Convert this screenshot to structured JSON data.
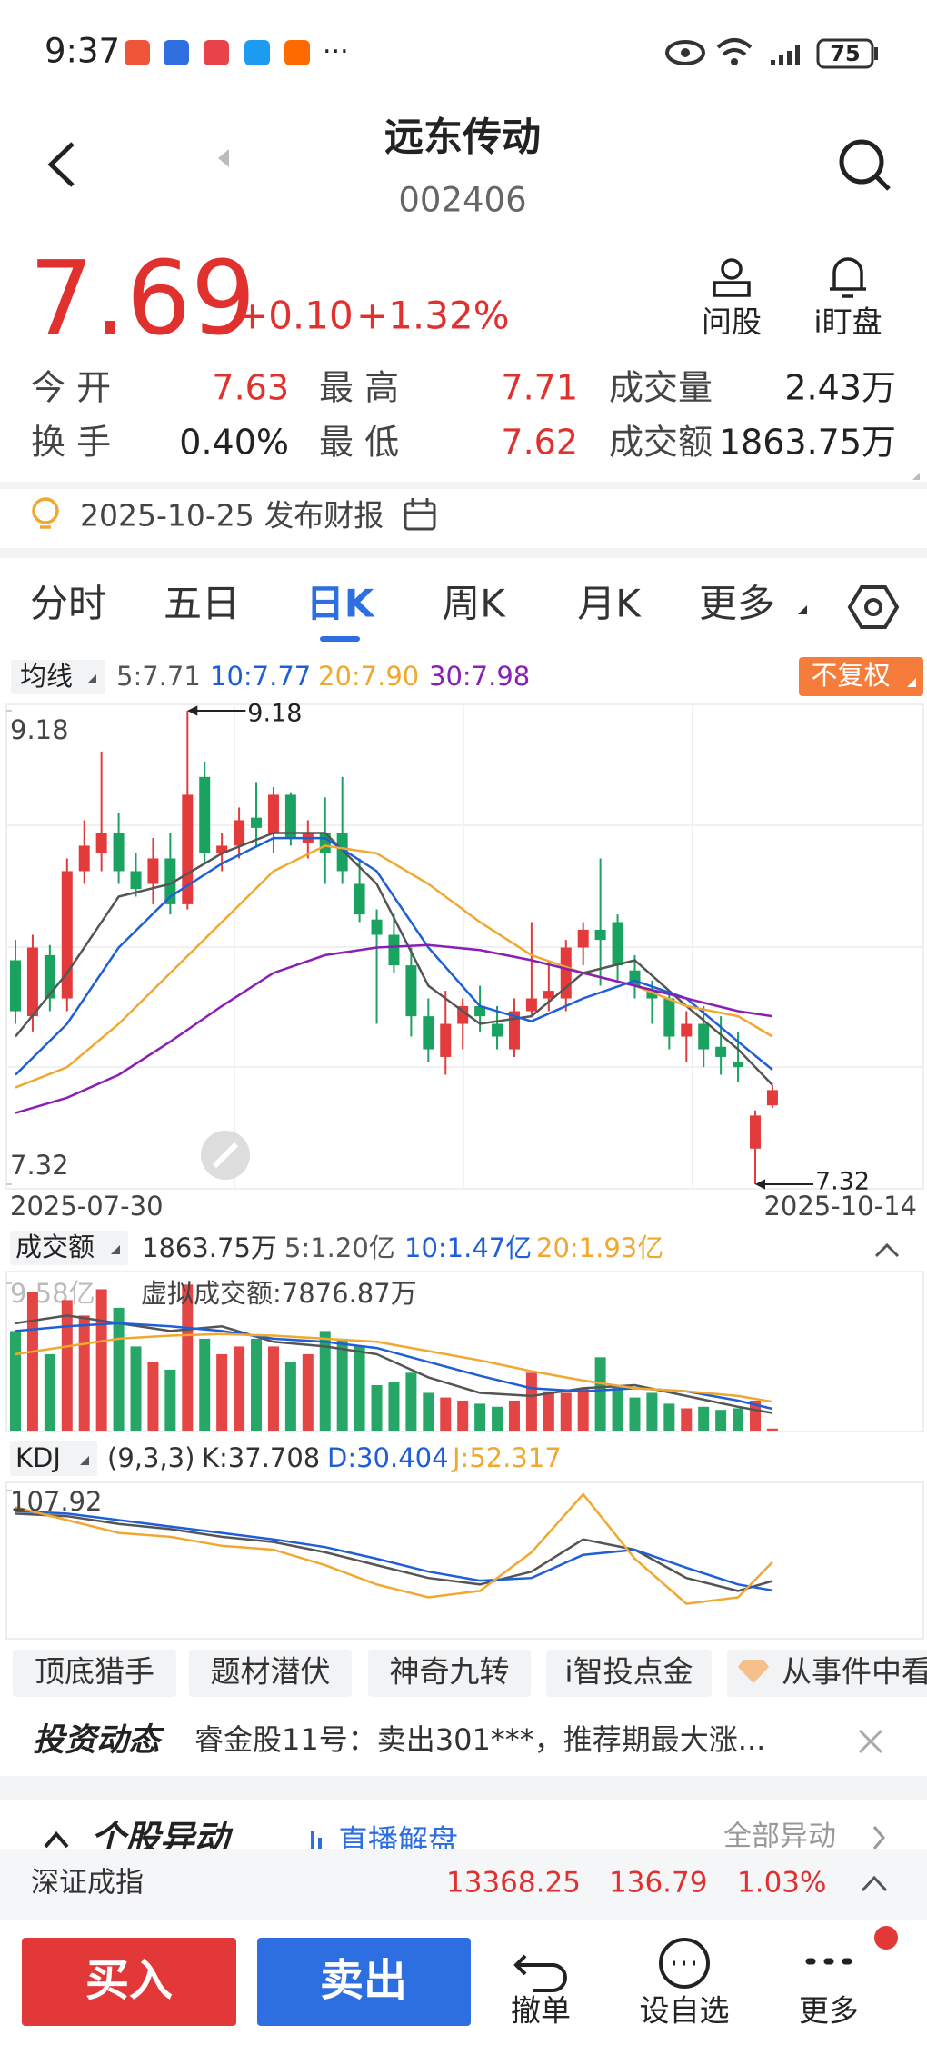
{
  "status_bar": {
    "time": "9:37",
    "battery": "75"
  },
  "header": {
    "name": "远东传动",
    "code": "002406"
  },
  "quote": {
    "price": "7.69",
    "change": "+0.10",
    "change_pct": "+1.32%",
    "actions": [
      "问股",
      "i盯盘"
    ],
    "stats": [
      {
        "label": "今 开",
        "value": "7.63",
        "color": "#e0312f"
      },
      {
        "label": "最 高",
        "value": "7.71",
        "color": "#e0312f"
      },
      {
        "label": "成交量",
        "value": "2.43万",
        "color": "#222"
      },
      {
        "label": "换 手",
        "value": "0.40%",
        "color": "#222"
      },
      {
        "label": "最 低",
        "value": "7.62",
        "color": "#e0312f"
      },
      {
        "label": "成交额",
        "value": "1863.75万",
        "color": "#222"
      }
    ]
  },
  "report": {
    "text": "2025-10-25 发布财报"
  },
  "tabs": {
    "items": [
      "分时",
      "五日",
      "日K",
      "周K",
      "月K",
      "更多"
    ],
    "active": 2
  },
  "kline": {
    "ma_label": "均线",
    "adjust": "不复权",
    "ylim": [
      7.32,
      9.18
    ],
    "yticks": [
      9.18,
      7.32
    ],
    "high_marker": 9.18,
    "low_marker": 7.32,
    "start_date": "2025-07-30",
    "end_date": "2025-10-14",
    "up_color": "#e33b3b",
    "down_color": "#1aa260",
    "candles": [
      [
        8.2,
        8.28,
        7.95,
        8.0
      ],
      [
        7.98,
        8.3,
        7.92,
        8.25
      ],
      [
        8.22,
        8.26,
        8.0,
        8.05
      ],
      [
        8.05,
        8.6,
        8.0,
        8.55
      ],
      [
        8.55,
        8.75,
        8.5,
        8.65
      ],
      [
        8.62,
        9.02,
        8.55,
        8.7
      ],
      [
        8.7,
        8.78,
        8.5,
        8.55
      ],
      [
        8.55,
        8.62,
        8.45,
        8.48
      ],
      [
        8.5,
        8.68,
        8.42,
        8.6
      ],
      [
        8.6,
        8.7,
        8.38,
        8.42
      ],
      [
        8.42,
        9.18,
        8.4,
        8.85
      ],
      [
        8.92,
        8.98,
        8.58,
        8.62
      ],
      [
        8.62,
        8.7,
        8.55,
        8.65
      ],
      [
        8.65,
        8.8,
        8.6,
        8.75
      ],
      [
        8.76,
        8.9,
        8.65,
        8.72
      ],
      [
        8.7,
        8.88,
        8.62,
        8.85
      ],
      [
        8.85,
        8.86,
        8.65,
        8.68
      ],
      [
        8.66,
        8.75,
        8.6,
        8.7
      ],
      [
        8.7,
        8.84,
        8.5,
        8.62
      ],
      [
        8.7,
        8.92,
        8.5,
        8.55
      ],
      [
        8.5,
        8.6,
        8.35,
        8.38
      ],
      [
        8.36,
        8.4,
        7.95,
        8.3
      ],
      [
        8.3,
        8.38,
        8.15,
        8.18
      ],
      [
        8.18,
        8.25,
        7.9,
        7.98
      ],
      [
        7.98,
        8.05,
        7.8,
        7.85
      ],
      [
        7.82,
        8.08,
        7.75,
        7.95
      ],
      [
        7.95,
        8.05,
        7.85,
        8.02
      ],
      [
        8.02,
        8.1,
        7.92,
        7.98
      ],
      [
        7.95,
        8.02,
        7.85,
        7.9
      ],
      [
        7.85,
        8.05,
        7.82,
        8.0
      ],
      [
        8.0,
        8.35,
        7.98,
        8.05
      ],
      [
        8.05,
        8.2,
        8.0,
        8.08
      ],
      [
        8.05,
        8.28,
        8.0,
        8.25
      ],
      [
        8.25,
        8.35,
        8.18,
        8.32
      ],
      [
        8.32,
        8.6,
        8.1,
        8.28
      ],
      [
        8.35,
        8.38,
        8.12,
        8.18
      ],
      [
        8.16,
        8.22,
        8.05,
        8.1
      ],
      [
        8.08,
        8.12,
        7.95,
        8.05
      ],
      [
        8.05,
        8.08,
        7.85,
        7.9
      ],
      [
        7.9,
        8.0,
        7.8,
        7.95
      ],
      [
        7.95,
        8.02,
        7.78,
        7.85
      ],
      [
        7.86,
        7.98,
        7.75,
        7.82
      ],
      [
        7.8,
        7.92,
        7.72,
        7.78
      ],
      [
        7.46,
        7.61,
        7.32,
        7.59
      ],
      [
        7.63,
        7.71,
        7.62,
        7.69
      ]
    ],
    "ma": {
      "x": [
        0,
        3,
        6,
        9,
        12,
        15,
        18,
        21,
        24,
        27,
        30,
        33,
        36,
        39,
        42,
        44
      ],
      "series": [
        {
          "name": "5:7.71",
          "color": "#555555",
          "values": [
            7.9,
            8.15,
            8.45,
            8.5,
            8.62,
            8.7,
            8.7,
            8.5,
            8.1,
            7.95,
            7.98,
            8.15,
            8.2,
            8.02,
            7.85,
            7.71
          ]
        },
        {
          "name": "10:7.77",
          "color": "#1f5fd6",
          "values": [
            7.75,
            7.95,
            8.25,
            8.45,
            8.58,
            8.68,
            8.68,
            8.55,
            8.25,
            8.02,
            7.96,
            8.05,
            8.12,
            8.05,
            7.88,
            7.77
          ]
        },
        {
          "name": "20:7.90",
          "color": "#f0a830",
          "values": [
            7.7,
            7.78,
            7.95,
            8.15,
            8.35,
            8.55,
            8.65,
            8.62,
            8.5,
            8.35,
            8.22,
            8.15,
            8.1,
            8.02,
            7.98,
            7.9
          ]
        },
        {
          "name": "30:7.98",
          "color": "#8a1fb5",
          "values": [
            7.6,
            7.66,
            7.75,
            7.88,
            8.02,
            8.15,
            8.22,
            8.25,
            8.26,
            8.24,
            8.2,
            8.15,
            8.1,
            8.05,
            8.0,
            7.98
          ]
        }
      ]
    }
  },
  "volume": {
    "label": "成交额",
    "current": "1863.75万",
    "virtual": "虚拟成交额:7876.87万",
    "ylim": [
      0,
      9.58
    ],
    "yticks": [
      {
        "value": 9.58,
        "label": "9.58亿"
      }
    ],
    "values": [
      6.5,
      9.0,
      5.0,
      8.5,
      7.5,
      9.2,
      8.0,
      5.5,
      4.5,
      4.0,
      9.5,
      6.0,
      5.0,
      5.5,
      6.0,
      5.5,
      4.5,
      5.0,
      6.5,
      6.0,
      5.5,
      3.0,
      3.2,
      3.8,
      2.5,
      2.2,
      2.0,
      1.8,
      1.6,
      2.0,
      3.8,
      2.6,
      2.5,
      2.8,
      4.8,
      3.0,
      2.2,
      2.5,
      1.8,
      1.5,
      1.6,
      1.4,
      1.5,
      2.0,
      0.19
    ],
    "ma": {
      "x": [
        0,
        3,
        6,
        9,
        12,
        15,
        18,
        21,
        24,
        27,
        30,
        33,
        36,
        39,
        42,
        44
      ],
      "series": [
        {
          "name": "5:1.20亿",
          "color": "#555555",
          "values": [
            7.0,
            7.5,
            7.0,
            6.5,
            6.8,
            5.8,
            5.5,
            5.0,
            3.5,
            2.5,
            2.3,
            2.8,
            3.0,
            2.3,
            1.6,
            1.2
          ]
        },
        {
          "name": "10:1.47亿",
          "color": "#1f5fd6",
          "values": [
            6.5,
            6.8,
            7.0,
            6.8,
            6.5,
            6.0,
            5.8,
            5.4,
            4.5,
            3.6,
            2.8,
            2.6,
            2.8,
            2.6,
            2.0,
            1.47
          ]
        },
        {
          "name": "20:1.93亿",
          "color": "#f0a830",
          "values": [
            5.0,
            5.5,
            6.0,
            6.2,
            6.3,
            6.2,
            6.0,
            5.8,
            5.2,
            4.6,
            3.9,
            3.3,
            2.8,
            2.6,
            2.3,
            1.93
          ]
        }
      ]
    }
  },
  "kdj": {
    "label": "KDJ",
    "params": "(9,3,3)",
    "ylim": [
      -5,
      107.92
    ],
    "yticks": [
      107.92
    ],
    "x": [
      0,
      3,
      6,
      9,
      12,
      15,
      18,
      21,
      24,
      27,
      30,
      33,
      36,
      39,
      42,
      44
    ],
    "series": [
      {
        "name": "K:37.708",
        "color": "#555555",
        "values": [
          90,
          88,
          82,
          78,
          72,
          68,
          60,
          50,
          40,
          35,
          45,
          70,
          62,
          40,
          30,
          37.708
        ]
      },
      {
        "name": "D:30.404",
        "color": "#1f5fd6",
        "values": [
          92,
          90,
          85,
          80,
          75,
          70,
          64,
          55,
          45,
          38,
          40,
          58,
          62,
          48,
          35,
          30.404
        ]
      },
      {
        "name": "J:52.317",
        "color": "#f0a830",
        "values": [
          95,
          85,
          75,
          72,
          65,
          62,
          50,
          35,
          25,
          30,
          60,
          105,
          55,
          20,
          25,
          52.317
        ]
      }
    ]
  },
  "tools": [
    "顶底猎手",
    "题材潜伏",
    "神奇九转",
    "i智投点金",
    "从事件中看"
  ],
  "news": {
    "logo": "投资动态",
    "text": "睿金股11号：卖出301***，推荐期最大涨..."
  },
  "movement": {
    "title": "个股异动",
    "live": "直播解盘",
    "all": "全部异动"
  },
  "index": {
    "name": "深证成指",
    "value": "13368.25",
    "change": "136.79",
    "pct": "1.03%",
    "color": "#e0312f"
  },
  "bottom": {
    "buy": "买入",
    "sell": "卖出",
    "actions": [
      "撤单",
      "设自选",
      "更多"
    ]
  }
}
